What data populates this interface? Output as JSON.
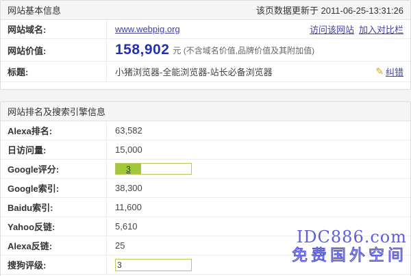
{
  "colors": {
    "accent_green": "#a2c839",
    "link_purple": "#4341a2",
    "value_blue": "#2530ac",
    "watermark_blue": "#4343d6",
    "header_bg": "#f5f5f5"
  },
  "basic": {
    "header": "网站基本信息",
    "updated": "该页数据更新于 2011-06-25-13:31:26",
    "domain_label": "网站域名:",
    "domain_value": "www.webpig.org",
    "visit_link": "访问该网站",
    "compare_link": "加入对比栏",
    "value_label": "网站价值:",
    "value_amount": "158,902",
    "value_suffix": "元 (不含域名价值,品牌价值及其附加值)",
    "title_label": "标题:",
    "title_value": "小猪浏览器-全能浏览器-站长必备浏览器",
    "pencil_icon": "✎",
    "correct_link": "纠错"
  },
  "rank": {
    "header": "网站排名及搜索引擎信息",
    "rows": [
      {
        "label": "Alexa排名:",
        "value": "63,582",
        "type": "text"
      },
      {
        "label": "日访问量:",
        "value": "15,000",
        "type": "text"
      },
      {
        "label": "Google评分:",
        "value": "3",
        "type": "bar",
        "max": 10
      },
      {
        "label": "Google索引:",
        "value": "38,300",
        "type": "text"
      },
      {
        "label": "Baidu索引:",
        "value": "11,600",
        "type": "text"
      },
      {
        "label": "Yahoo反链:",
        "value": "5,610",
        "type": "text"
      },
      {
        "label": "Alexa反链:",
        "value": "25",
        "type": "text"
      },
      {
        "label": "搜狗评级:",
        "value": "3",
        "type": "bar",
        "max": 100
      }
    ]
  },
  "watermark": {
    "line1": "IDC886.com",
    "line2": "免费国外空间"
  }
}
